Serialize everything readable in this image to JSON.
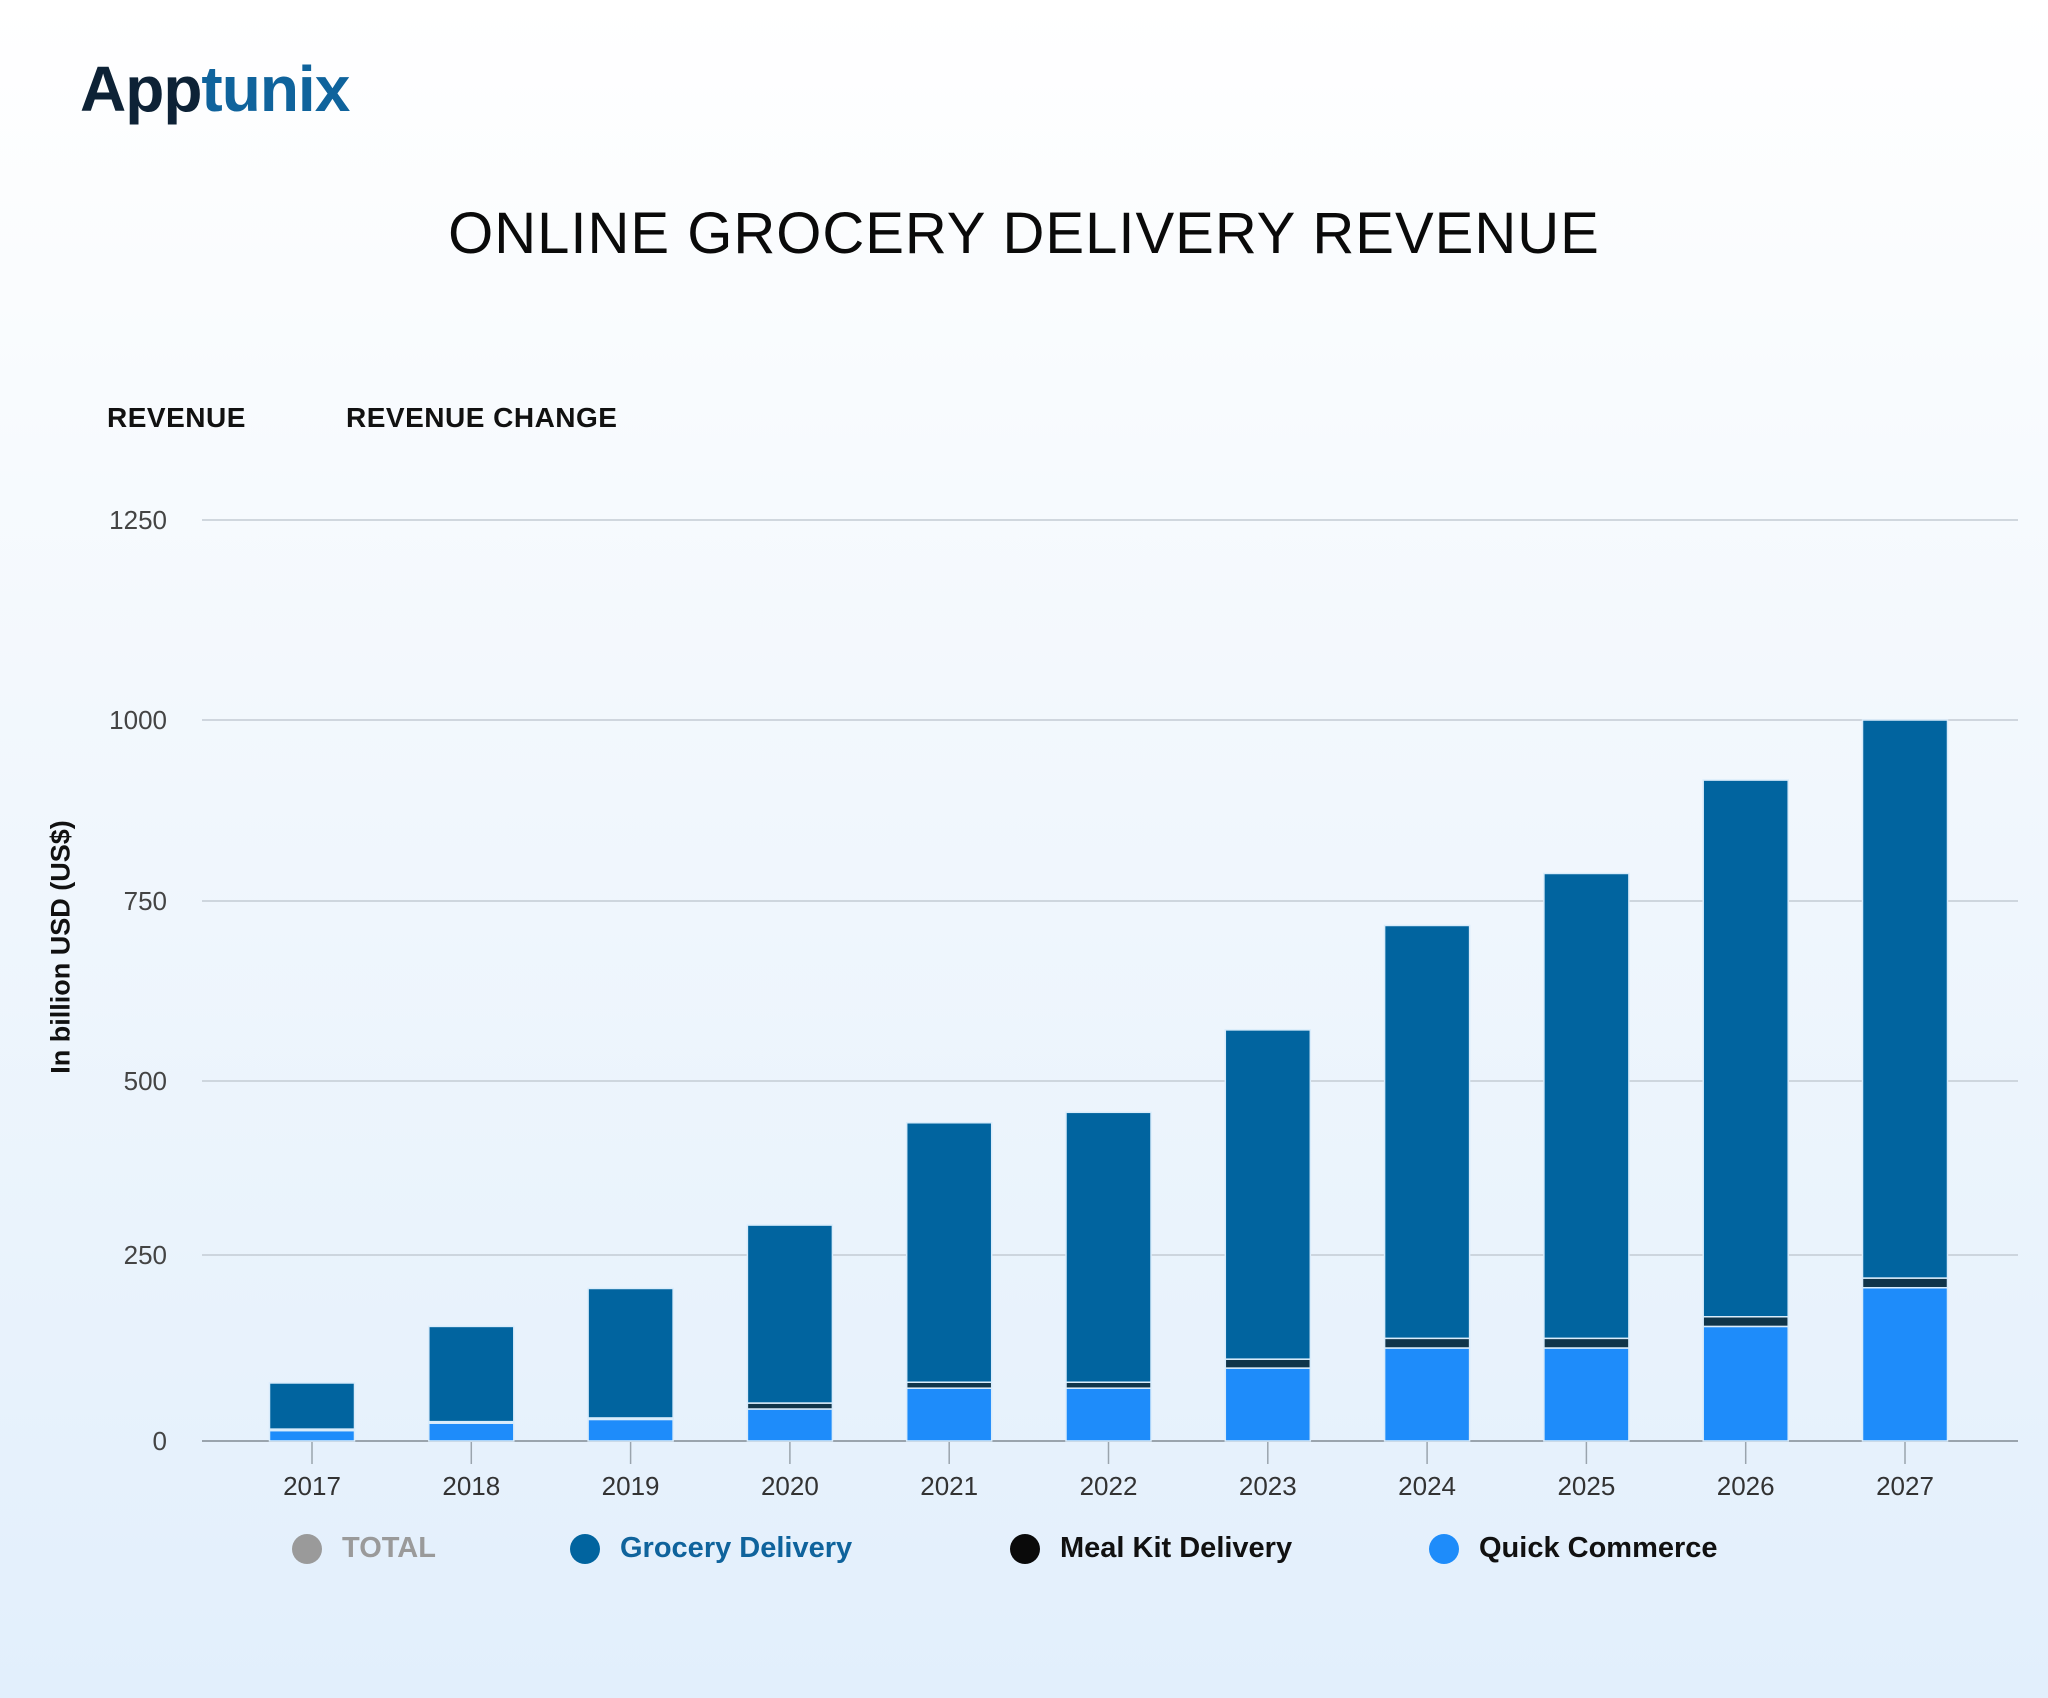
{
  "logo": {
    "text_a": "App",
    "text_b": "tunix"
  },
  "title": "ONLINE GROCERY DELIVERY REVENUE",
  "tabs": [
    {
      "label": "REVENUE"
    },
    {
      "label": "REVENUE CHANGE"
    }
  ],
  "chart_data": {
    "type": "bar",
    "stacked": true,
    "title": "ONLINE GROCERY DELIVERY REVENUE",
    "ylabel": "In billion USD (US$)",
    "xlabel": "",
    "ylim": [
      0,
      1250
    ],
    "yticks": [
      0,
      250,
      500,
      750,
      1000,
      1250
    ],
    "grid": true,
    "legend_placement": "bottom",
    "categories": [
      "2017",
      "2018",
      "2019",
      "2020",
      "2021",
      "2022",
      "2023",
      "2024",
      "2025",
      "2026",
      "2027"
    ],
    "series": [
      {
        "name": "Quick Commerce",
        "color": "#1e8cfa",
        "values": [
          14,
          24,
          29,
          43,
          71,
          71,
          98,
          125,
          125,
          154,
          206
        ]
      },
      {
        "name": "Meal Kit Delivery",
        "color": "#10354a",
        "values": [
          2,
          2,
          2,
          8,
          8,
          8,
          12,
          13,
          13,
          13,
          13
        ]
      },
      {
        "name": "Grocery Delivery",
        "color": "#01649f",
        "values": [
          62,
          128,
          174,
          242,
          361,
          376,
          461,
          578,
          650,
          750,
          781
        ]
      }
    ],
    "legend": [
      {
        "name": "TOTAL",
        "color": "#9a9a9a",
        "text_color": "#9a9a9a"
      },
      {
        "name": "Grocery Delivery",
        "color": "#01649f",
        "text_color": "#0f639c"
      },
      {
        "name": "Meal Kit Delivery",
        "color": "#0a0a0a",
        "text_color": "#111111"
      },
      {
        "name": "Quick Commerce",
        "color": "#1e8cfa",
        "text_color": "#111111"
      }
    ]
  }
}
